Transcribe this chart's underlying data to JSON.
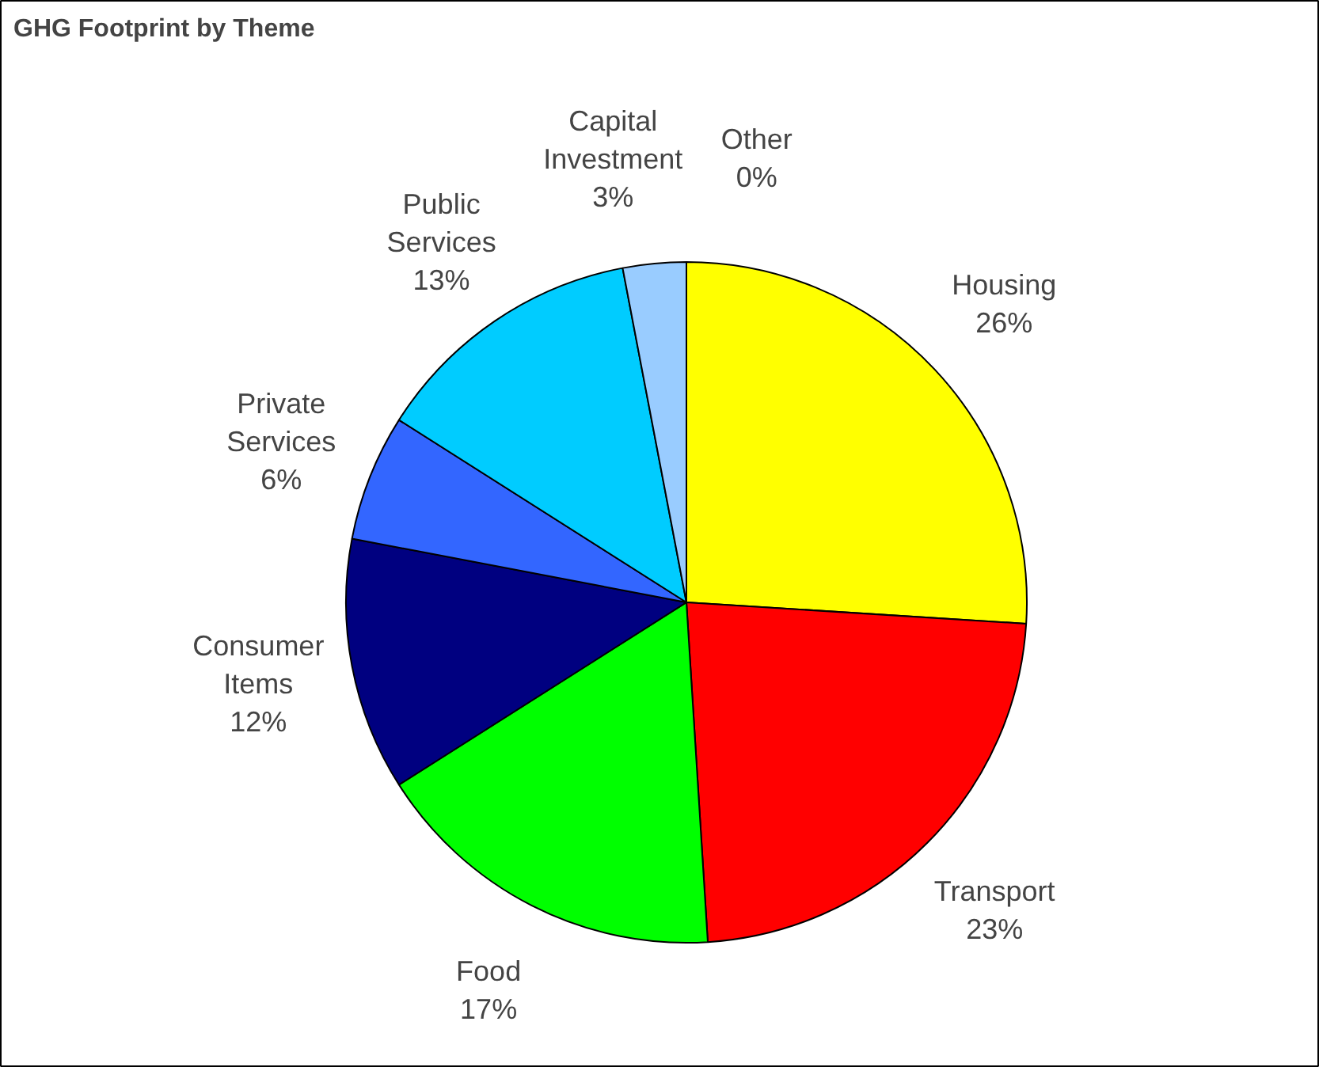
{
  "chart_data": {
    "type": "pie",
    "title": "GHG Footprint by Theme",
    "categories": [
      "Housing",
      "Transport",
      "Food",
      "Consumer Items",
      "Private Services",
      "Public Services",
      "Capital Investment",
      "Other"
    ],
    "values": [
      26,
      23,
      17,
      12,
      6,
      13,
      3,
      0
    ],
    "value_labels": [
      "26%",
      "23%",
      "17%",
      "12%",
      "6%",
      "13%",
      "3%",
      "0%"
    ],
    "colors": [
      "#ffff00",
      "#ff0000",
      "#00ff00",
      "#000080",
      "#3366ff",
      "#00ccff",
      "#99ccff",
      "#ccccff"
    ]
  }
}
